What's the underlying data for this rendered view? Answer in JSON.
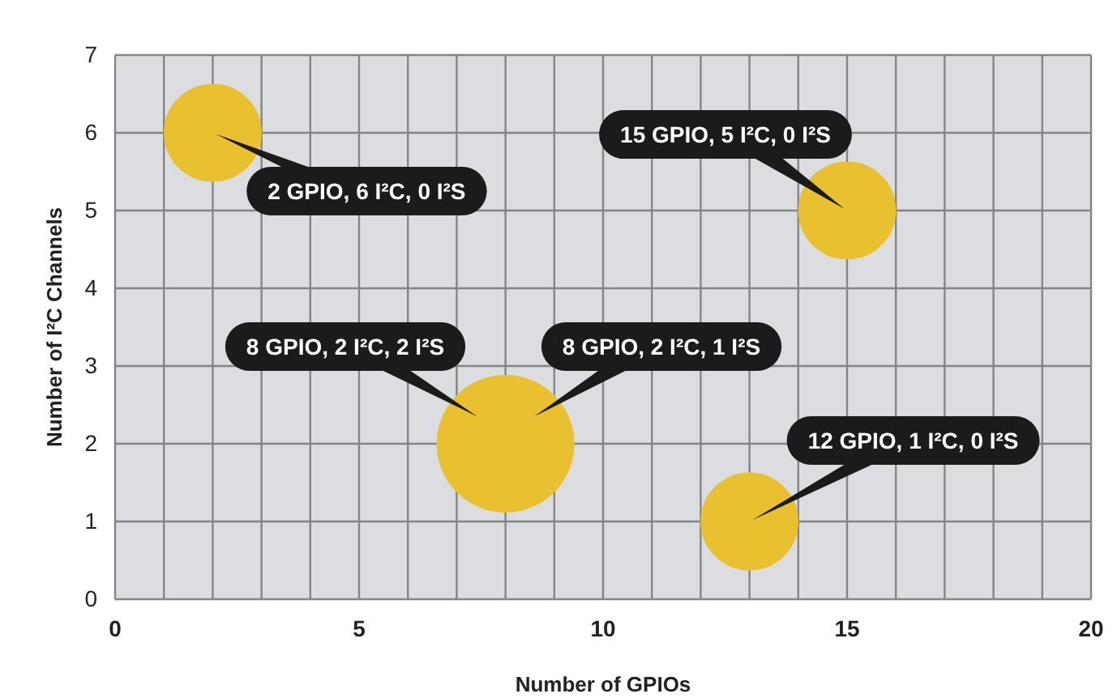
{
  "chart_data": {
    "type": "bubble",
    "xlabel": "Number of GPIOs",
    "ylabel": "Number of I²C Channels",
    "x": [
      2,
      15,
      8,
      13
    ],
    "values": [
      6,
      5,
      2,
      1
    ],
    "sizes": [
      0.5,
      0.5,
      1,
      0.5
    ],
    "color": "#e8c030",
    "xlim": [
      0,
      20
    ],
    "ylim": [
      0,
      7
    ],
    "xticks": [
      0,
      {
        "value": 1,
        "label": null
      },
      {
        "value": 2,
        "label": null
      },
      {
        "value": 3,
        "label": null
      },
      {
        "value": 4,
        "label": null
      },
      5,
      {
        "value": 6,
        "label": null
      },
      {
        "value": 7,
        "label": null
      },
      {
        "value": 8,
        "label": null
      },
      {
        "value": 9,
        "label": null
      },
      10,
      {
        "value": 11,
        "label": null
      },
      {
        "value": 12,
        "label": null
      },
      {
        "value": 13,
        "label": null
      },
      {
        "value": 14,
        "label": null
      },
      15,
      {
        "value": 16,
        "label": null
      },
      {
        "value": 17,
        "label": null
      },
      {
        "value": 18,
        "label": null
      },
      {
        "value": 19,
        "label": null
      },
      20
    ],
    "yticks": [
      0,
      1,
      2,
      3,
      4,
      5,
      6,
      7
    ],
    "grid": true,
    "annotations": [
      {
        "text": "2 GPIO, 6 I²C, 0 I²S",
        "x": 2,
        "y": 6
      },
      {
        "text": "15 GPIO, 5 I²C, 0 I²S",
        "x": 15,
        "y": 5
      },
      "8 GPIO, 2 I²C, 2 I²S",
      "8 GPIO, 2 I²C, 1 I²S",
      {
        "text": "12 GPIO, 1 I²C, 0 I²S",
        "x": 13,
        "y": 1
      }
    ]
  }
}
